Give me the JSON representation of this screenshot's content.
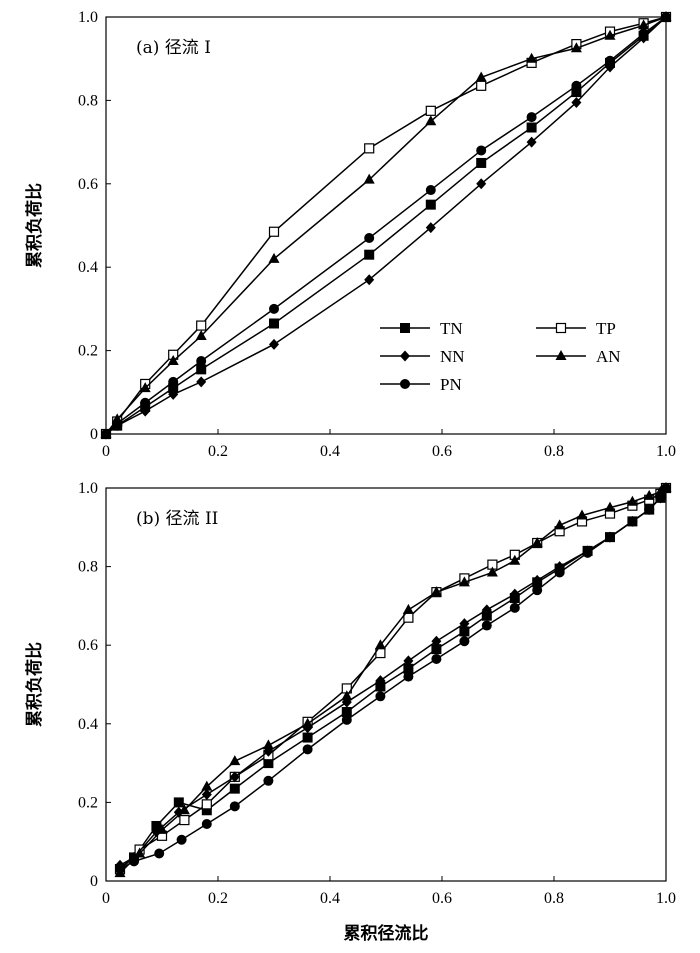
{
  "chart_data": [
    {
      "type": "line",
      "title": "(a) 径流 I",
      "xlabel": "",
      "ylabel": "累积负荷比",
      "xlim": [
        0,
        1
      ],
      "ylim": [
        0,
        1
      ],
      "xticks": [
        "0",
        "0.2",
        "0.4",
        "0.6",
        "0.8",
        "1.0"
      ],
      "yticks": [
        "0",
        "0.2",
        "0.4",
        "0.6",
        "0.8",
        "1.0"
      ],
      "grid": false,
      "legend_position": "bottom-right",
      "series": [
        {
          "name": "TN",
          "marker": "square-filled",
          "x": [
            0,
            0.02,
            0.07,
            0.12,
            0.17,
            0.3,
            0.47,
            0.58,
            0.67,
            0.76,
            0.84,
            0.9,
            0.96,
            1.0
          ],
          "y": [
            0,
            0.02,
            0.065,
            0.11,
            0.155,
            0.265,
            0.43,
            0.55,
            0.65,
            0.735,
            0.82,
            0.89,
            0.955,
            1.0
          ]
        },
        {
          "name": "TP",
          "marker": "square-open",
          "x": [
            0,
            0.02,
            0.07,
            0.12,
            0.17,
            0.3,
            0.47,
            0.58,
            0.67,
            0.76,
            0.84,
            0.9,
            0.96,
            1.0
          ],
          "y": [
            0,
            0.03,
            0.12,
            0.19,
            0.26,
            0.485,
            0.685,
            0.775,
            0.835,
            0.89,
            0.935,
            0.965,
            0.985,
            1.0
          ]
        },
        {
          "name": "NN",
          "marker": "diamond-filled",
          "x": [
            0,
            0.02,
            0.07,
            0.12,
            0.17,
            0.3,
            0.47,
            0.58,
            0.67,
            0.76,
            0.84,
            0.9,
            0.96,
            1.0
          ],
          "y": [
            0,
            0.02,
            0.055,
            0.095,
            0.125,
            0.215,
            0.37,
            0.495,
            0.6,
            0.7,
            0.795,
            0.88,
            0.95,
            1.0
          ]
        },
        {
          "name": "AN",
          "marker": "triangle-filled",
          "x": [
            0,
            0.02,
            0.07,
            0.12,
            0.17,
            0.3,
            0.47,
            0.58,
            0.67,
            0.76,
            0.84,
            0.9,
            0.96,
            1.0
          ],
          "y": [
            0,
            0.035,
            0.11,
            0.175,
            0.235,
            0.42,
            0.61,
            0.75,
            0.855,
            0.9,
            0.925,
            0.955,
            0.98,
            1.0
          ]
        },
        {
          "name": "PN",
          "marker": "circle-filled",
          "x": [
            0,
            0.02,
            0.07,
            0.12,
            0.17,
            0.3,
            0.47,
            0.58,
            0.67,
            0.76,
            0.84,
            0.9,
            0.96,
            1.0
          ],
          "y": [
            0,
            0.025,
            0.075,
            0.125,
            0.175,
            0.3,
            0.47,
            0.585,
            0.68,
            0.76,
            0.835,
            0.895,
            0.96,
            1.0
          ]
        }
      ]
    },
    {
      "type": "line",
      "title": "(b) 径流 II",
      "xlabel": "累积径流比",
      "ylabel": "累积负荷比",
      "xlim": [
        0,
        1
      ],
      "ylim": [
        0,
        1
      ],
      "xticks": [
        "0",
        "0.2",
        "0.4",
        "0.6",
        "0.8",
        "1.0"
      ],
      "yticks": [
        "0",
        "0.2",
        "0.4",
        "0.6",
        "0.8",
        "1.0"
      ],
      "grid": false,
      "series": [
        {
          "name": "TN",
          "marker": "square-filled",
          "x": [
            0.025,
            0.05,
            0.09,
            0.13,
            0.18,
            0.23,
            0.29,
            0.36,
            0.43,
            0.49,
            0.54,
            0.59,
            0.64,
            0.68,
            0.73,
            0.77,
            0.81,
            0.86,
            0.9,
            0.94,
            0.97,
            0.99,
            1.0
          ],
          "y": [
            0.03,
            0.06,
            0.14,
            0.2,
            0.18,
            0.235,
            0.3,
            0.365,
            0.43,
            0.495,
            0.54,
            0.59,
            0.635,
            0.675,
            0.72,
            0.76,
            0.795,
            0.84,
            0.875,
            0.915,
            0.945,
            0.975,
            1.0
          ]
        },
        {
          "name": "TP",
          "marker": "square-open",
          "x": [
            0.025,
            0.06,
            0.1,
            0.14,
            0.18,
            0.23,
            0.29,
            0.36,
            0.43,
            0.49,
            0.54,
            0.59,
            0.64,
            0.69,
            0.73,
            0.77,
            0.81,
            0.85,
            0.9,
            0.94,
            0.97,
            0.99,
            1.0
          ],
          "y": [
            0.03,
            0.08,
            0.115,
            0.155,
            0.195,
            0.265,
            0.32,
            0.405,
            0.49,
            0.58,
            0.67,
            0.735,
            0.77,
            0.805,
            0.83,
            0.86,
            0.89,
            0.915,
            0.935,
            0.955,
            0.97,
            0.985,
            1.0
          ]
        },
        {
          "name": "NN",
          "marker": "diamond-filled",
          "x": [
            0.025,
            0.05,
            0.09,
            0.13,
            0.18,
            0.23,
            0.29,
            0.36,
            0.43,
            0.49,
            0.54,
            0.59,
            0.64,
            0.68,
            0.73,
            0.77,
            0.81,
            0.86,
            0.9,
            0.94,
            0.97,
            0.99,
            1.0
          ],
          "y": [
            0.04,
            0.06,
            0.125,
            0.175,
            0.22,
            0.265,
            0.33,
            0.39,
            0.455,
            0.51,
            0.56,
            0.61,
            0.655,
            0.69,
            0.73,
            0.765,
            0.8,
            0.84,
            0.875,
            0.915,
            0.945,
            0.975,
            1.0
          ]
        },
        {
          "name": "AN",
          "marker": "triangle-filled",
          "x": [
            0.025,
            0.06,
            0.1,
            0.14,
            0.18,
            0.23,
            0.29,
            0.36,
            0.43,
            0.49,
            0.54,
            0.59,
            0.64,
            0.69,
            0.73,
            0.77,
            0.81,
            0.85,
            0.9,
            0.94,
            0.97,
            0.99,
            1.0
          ],
          "y": [
            0.02,
            0.07,
            0.13,
            0.18,
            0.24,
            0.305,
            0.345,
            0.4,
            0.47,
            0.6,
            0.69,
            0.735,
            0.76,
            0.785,
            0.815,
            0.86,
            0.905,
            0.93,
            0.95,
            0.965,
            0.98,
            0.99,
            1.0
          ]
        },
        {
          "name": "PN",
          "marker": "circle-filled",
          "x": [
            0.025,
            0.05,
            0.095,
            0.135,
            0.18,
            0.23,
            0.29,
            0.36,
            0.43,
            0.49,
            0.54,
            0.59,
            0.64,
            0.68,
            0.73,
            0.77,
            0.81,
            0.86,
            0.9,
            0.94,
            0.97,
            0.99,
            1.0
          ],
          "y": [
            0.03,
            0.05,
            0.07,
            0.105,
            0.145,
            0.19,
            0.255,
            0.335,
            0.41,
            0.47,
            0.52,
            0.565,
            0.61,
            0.65,
            0.695,
            0.74,
            0.785,
            0.835,
            0.875,
            0.915,
            0.945,
            0.975,
            1.0
          ]
        }
      ]
    }
  ]
}
